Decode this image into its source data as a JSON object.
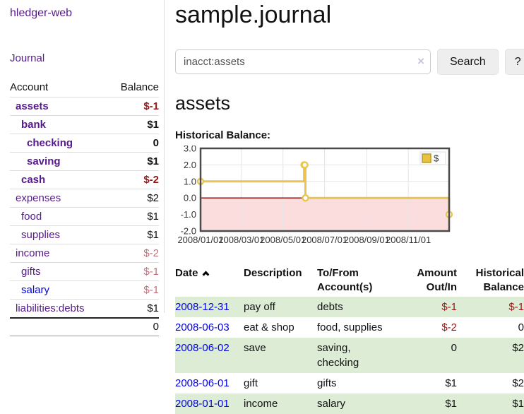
{
  "app": {
    "brand": "hledger-web"
  },
  "colors": {
    "link_purple": "#551a8b",
    "link_blue": "#0000ee",
    "negative_red": "#971616",
    "negative_faded": "#c3707a",
    "row_stripe_green": "#ddecd5",
    "chart_line_gold": "#e9c450",
    "chart_negative_fill": "#fbdddd",
    "chart_zero_line": "#8b0000"
  },
  "sidebar": {
    "journal_link": "Journal",
    "header": {
      "account": "Account",
      "balance": "Balance"
    },
    "accounts": [
      {
        "name": "assets",
        "balance": "$-1",
        "indent_class": "lvl1",
        "name_class": "bold",
        "bal_class": "neg bold"
      },
      {
        "name": "bank",
        "balance": "$1",
        "indent_class": "lvl2",
        "name_class": "bold",
        "bal_class": "bold"
      },
      {
        "name": "checking",
        "balance": "0",
        "indent_class": "lvl3",
        "name_class": "bold",
        "bal_class": "bold"
      },
      {
        "name": "saving",
        "balance": "$1",
        "indent_class": "lvl3",
        "name_class": "bold",
        "bal_class": "bold"
      },
      {
        "name": "cash",
        "balance": "$-2",
        "indent_class": "lvl2",
        "name_class": "bold",
        "bal_class": "neg bold"
      },
      {
        "name": "expenses",
        "balance": "$2",
        "indent_class": "lvl1",
        "name_class": "",
        "bal_class": ""
      },
      {
        "name": "food",
        "balance": "$1",
        "indent_class": "lvl2",
        "name_class": "",
        "bal_class": ""
      },
      {
        "name": "supplies",
        "balance": "$1",
        "indent_class": "lvl2",
        "name_class": "",
        "bal_class": ""
      },
      {
        "name": "income",
        "balance": "$-2",
        "indent_class": "lvl1",
        "name_class": "",
        "bal_class": "neg-faded"
      },
      {
        "name": "gifts",
        "balance": "$-1",
        "indent_class": "lvl2",
        "name_class": "",
        "bal_class": "neg-faded"
      },
      {
        "name": "salary",
        "balance": "$-1",
        "indent_class": "lvl2",
        "name_class": "blue",
        "bal_class": "neg-faded"
      },
      {
        "name": "liabilities:debts",
        "balance": "$1",
        "indent_class": "lvl1",
        "name_class": "",
        "bal_class": ""
      }
    ],
    "total": "0"
  },
  "main": {
    "title": "sample.journal",
    "search": {
      "value": "inacct:assets",
      "clear_icon": "×",
      "button_label": "Search",
      "help_label": "?"
    },
    "account_heading": "assets",
    "chart_label": "Historical Balance:"
  },
  "chart_data": {
    "type": "line",
    "title": "Historical Balance:",
    "legend": "$",
    "legend_position": "top-right",
    "step": true,
    "grid": true,
    "xlim": [
      "2008-01-01",
      "2008-12-31"
    ],
    "ylim": [
      -2.0,
      3.0
    ],
    "x_ticks": [
      "2008/01/01",
      "2008/03/01",
      "2008/05/01",
      "2008/07/01",
      "2008/09/01",
      "2008/11/01"
    ],
    "y_ticks": [
      "3.0",
      "2.0",
      "1.0",
      "0.0",
      "-1.0",
      "-2.0"
    ],
    "series": [
      {
        "name": "$",
        "points": [
          [
            "2008-01-01",
            1
          ],
          [
            "2008-06-01",
            2
          ],
          [
            "2008-06-02",
            2
          ],
          [
            "2008-06-03",
            0
          ],
          [
            "2008-12-31",
            -1
          ]
        ]
      }
    ],
    "negative_region_shaded": true
  },
  "register": {
    "headers": {
      "date": "Date",
      "description": "Description",
      "accounts": "To/From Account(s)",
      "amount": "Amount Out/In",
      "balance": "Historical Balance"
    },
    "rows": [
      {
        "date": "2008-12-31",
        "description": "pay off",
        "accounts": "debts",
        "amount": "$-1",
        "balance": "$-1",
        "amount_class": "neg",
        "balance_class": "neg",
        "row_class": "striped"
      },
      {
        "date": "2008-06-03",
        "description": "eat & shop",
        "accounts": "food, supplies",
        "amount": "$-2",
        "balance": "0",
        "amount_class": "neg",
        "balance_class": "",
        "row_class": ""
      },
      {
        "date": "2008-06-02",
        "description": "save",
        "accounts": "saving, checking",
        "amount": "0",
        "balance": "$2",
        "amount_class": "",
        "balance_class": "",
        "row_class": "striped"
      },
      {
        "date": "2008-06-01",
        "description": "gift",
        "accounts": "gifts",
        "amount": "$1",
        "balance": "$2",
        "amount_class": "",
        "balance_class": "",
        "row_class": ""
      },
      {
        "date": "2008-01-01",
        "description": "income",
        "accounts": "salary",
        "amount": "$1",
        "balance": "$1",
        "amount_class": "",
        "balance_class": "",
        "row_class": "striped"
      }
    ]
  }
}
